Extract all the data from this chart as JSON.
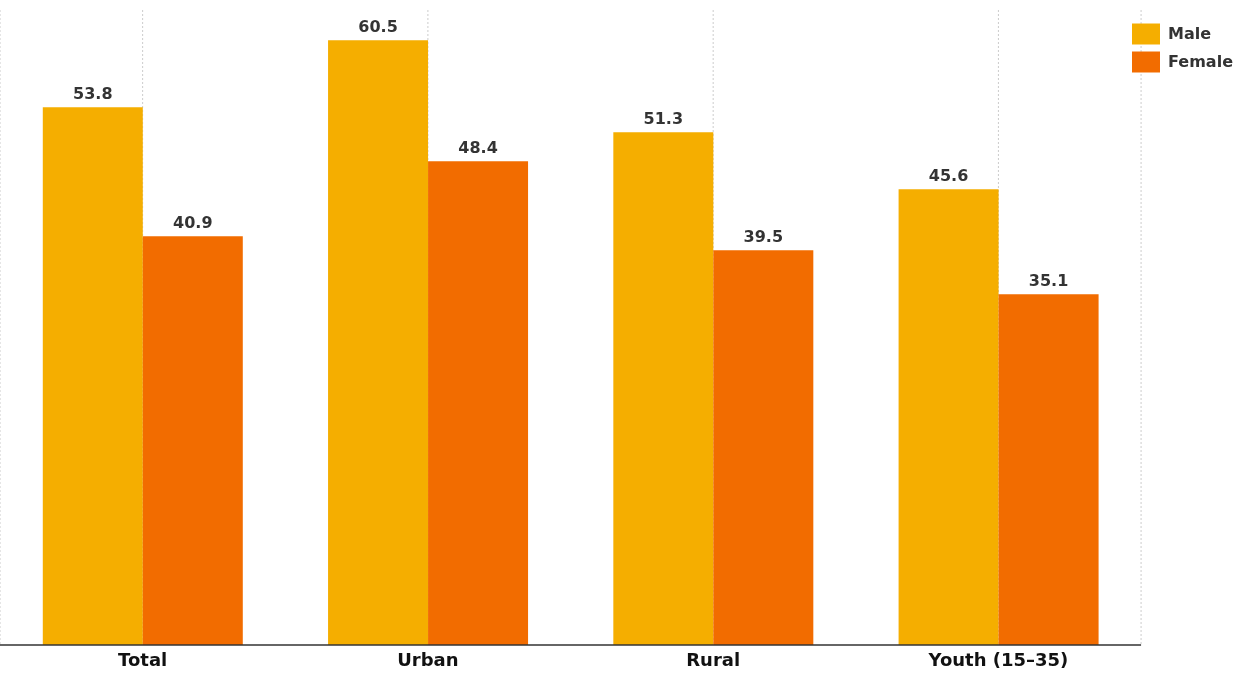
{
  "chart_data": {
    "type": "bar",
    "categories": [
      "Total",
      "Urban",
      "Rural",
      "Youth (15–35)"
    ],
    "series": [
      {
        "name": "Male",
        "color": "#f5ae00",
        "values": [
          53.8,
          60.5,
          51.3,
          45.6
        ]
      },
      {
        "name": "Female",
        "color": "#f26c00",
        "values": [
          40.9,
          48.4,
          39.5,
          35.1
        ]
      }
    ],
    "data_labels": true,
    "grid": "x",
    "legend": "top right"
  }
}
